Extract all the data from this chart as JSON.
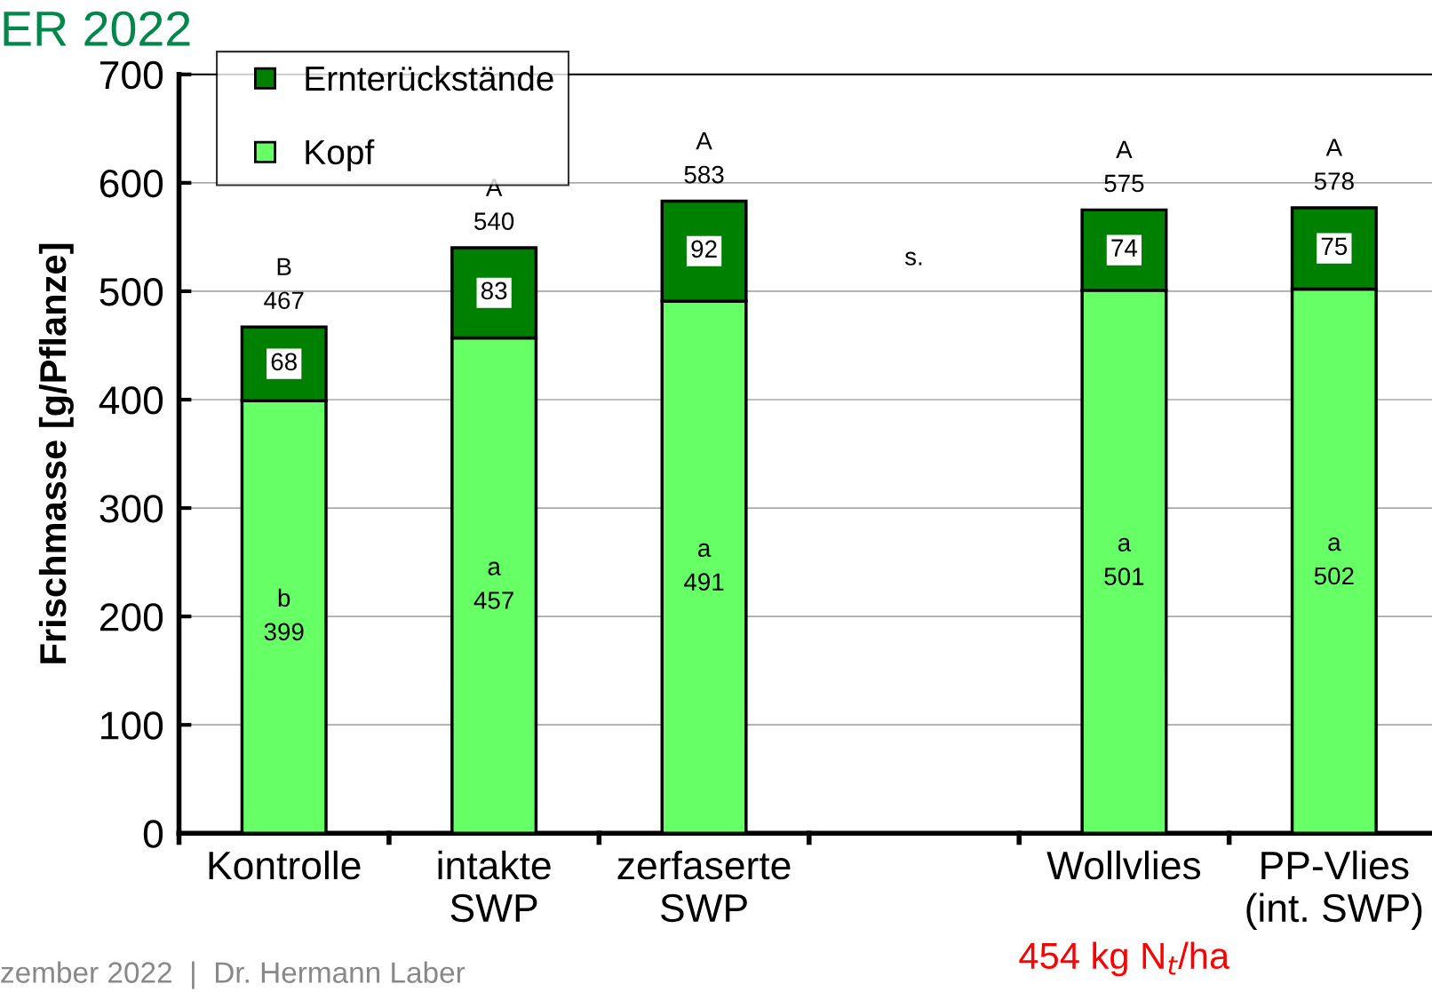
{
  "chart_data": {
    "type": "bar",
    "stacked": true,
    "title": "ER 2022",
    "ylabel": "Frischmasse [g/Pflanze]",
    "categories": [
      "Kontrolle",
      "intakte\nSWP",
      "zerfaserte\nSWP",
      null,
      "Wollvlies",
      "PP-Vlies\n(int. SWP)"
    ],
    "series": [
      {
        "name": "Kopf",
        "color": "#66ff66",
        "values": [
          399,
          457,
          491,
          null,
          501,
          502
        ],
        "value_labels": [
          "b\n399",
          "a\n457",
          "a\n491",
          null,
          "a\n501",
          "a\n502"
        ]
      },
      {
        "name": "Ernterückstände",
        "color": "#008000",
        "values": [
          68,
          83,
          92,
          null,
          74,
          75
        ],
        "value_labels": [
          "68",
          "83",
          "92",
          null,
          "74",
          "75"
        ]
      }
    ],
    "totals": [
      "B\n467",
      "A\n540",
      "A\n583",
      null,
      "A\n575",
      "A\n578"
    ],
    "ylim": [
      0,
      700
    ],
    "yticks": [
      0,
      100,
      200,
      300,
      400,
      500,
      600,
      700
    ],
    "grid": "y",
    "legend": "top left",
    "annotations": [
      "s.",
      "454 kg N$_{t}$/ha",
      "zember 2022  |  Dr. Hermann Laber"
    ]
  }
}
